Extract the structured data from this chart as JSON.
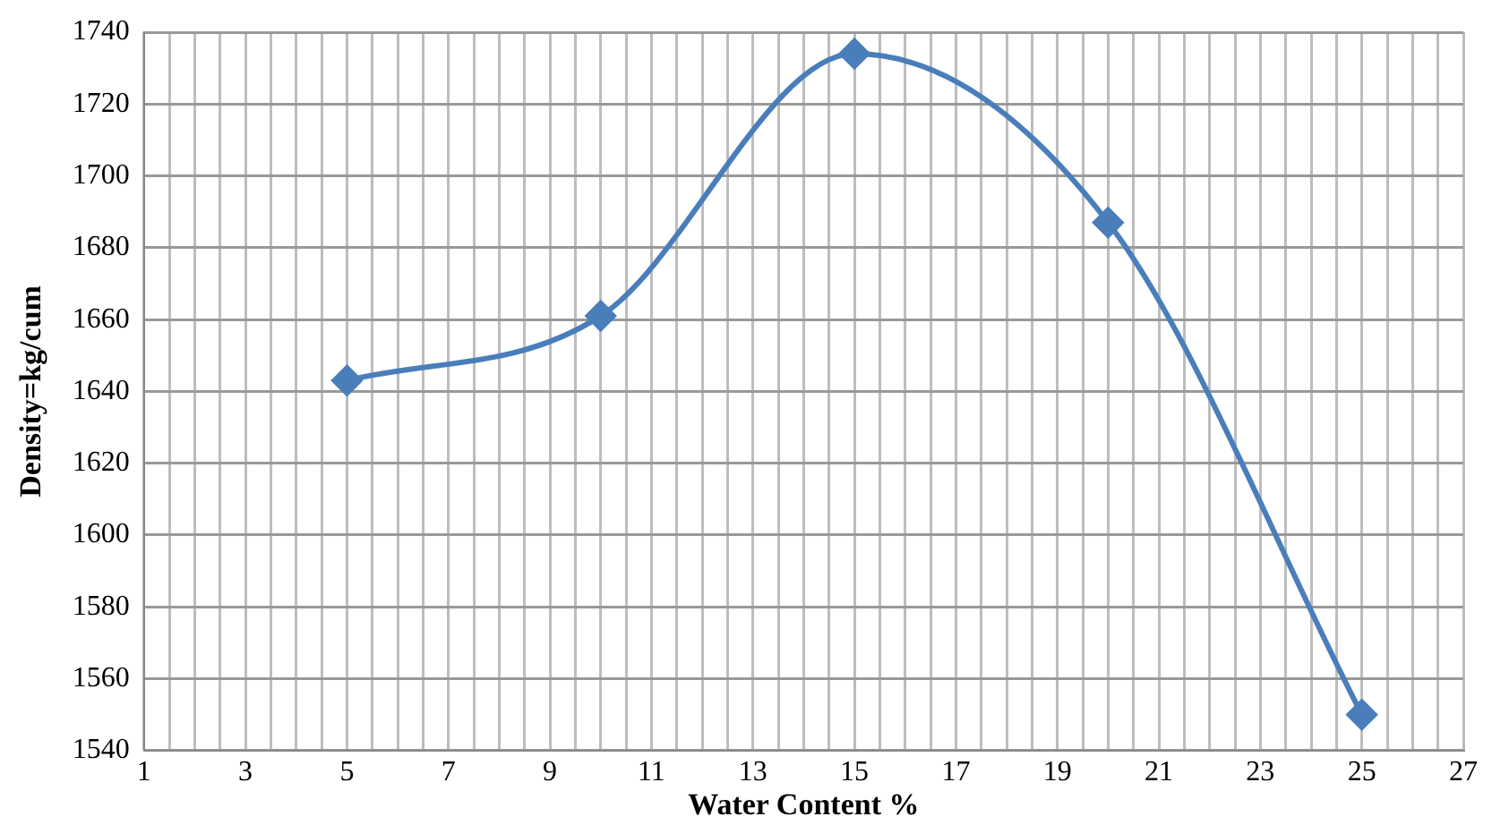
{
  "chart_data": {
    "type": "line",
    "xlabel": "Water Content %",
    "ylabel": "Density=kg/cum",
    "x": [
      5,
      10,
      15,
      20,
      25
    ],
    "series": [
      {
        "color": "#4a7ebb",
        "values": [
          1643,
          1661,
          1734,
          1687,
          1550
        ]
      }
    ],
    "xlim": [
      1,
      27
    ],
    "xticks": [
      1,
      {
        "value": 1.5,
        "label": null
      },
      {
        "value": 2,
        "label": null
      },
      {
        "value": 2.5,
        "label": null
      },
      3,
      {
        "value": 3.5,
        "label": null
      },
      {
        "value": 4,
        "label": null
      },
      {
        "value": 4.5,
        "label": null
      },
      5,
      {
        "value": 5.5,
        "label": null
      },
      {
        "value": 6,
        "label": null
      },
      {
        "value": 6.5,
        "label": null
      },
      7,
      {
        "value": 7.5,
        "label": null
      },
      {
        "value": 8,
        "label": null
      },
      {
        "value": 8.5,
        "label": null
      },
      9,
      {
        "value": 9.5,
        "label": null
      },
      {
        "value": 10,
        "label": null
      },
      {
        "value": 10.5,
        "label": null
      },
      11,
      {
        "value": 11.5,
        "label": null
      },
      {
        "value": 12,
        "label": null
      },
      {
        "value": 12.5,
        "label": null
      },
      13,
      {
        "value": 13.5,
        "label": null
      },
      {
        "value": 14,
        "label": null
      },
      {
        "value": 14.5,
        "label": null
      },
      15,
      {
        "value": 15.5,
        "label": null
      },
      {
        "value": 16,
        "label": null
      },
      {
        "value": 16.5,
        "label": null
      },
      17,
      {
        "value": 17.5,
        "label": null
      },
      {
        "value": 18,
        "label": null
      },
      {
        "value": 18.5,
        "label": null
      },
      19,
      {
        "value": 19.5,
        "label": null
      },
      {
        "value": 20,
        "label": null
      },
      {
        "value": 20.5,
        "label": null
      },
      21,
      {
        "value": 21.5,
        "label": null
      },
      {
        "value": 22,
        "label": null
      },
      {
        "value": 22.5,
        "label": null
      },
      23,
      {
        "value": 23.5,
        "label": null
      },
      {
        "value": 24,
        "label": null
      },
      {
        "value": 24.5,
        "label": null
      },
      25,
      {
        "value": 25.5,
        "label": null
      },
      {
        "value": 26,
        "label": null
      },
      {
        "value": 26.5,
        "label": null
      },
      27
    ],
    "ylim": [
      1540,
      1740
    ],
    "yticks": [
      1540,
      1560,
      1580,
      1600,
      1620,
      1640,
      1660,
      1680,
      1700,
      1720,
      1740
    ],
    "grid": true,
    "legend": false,
    "marker": "diamond",
    "line_style": "solid"
  }
}
